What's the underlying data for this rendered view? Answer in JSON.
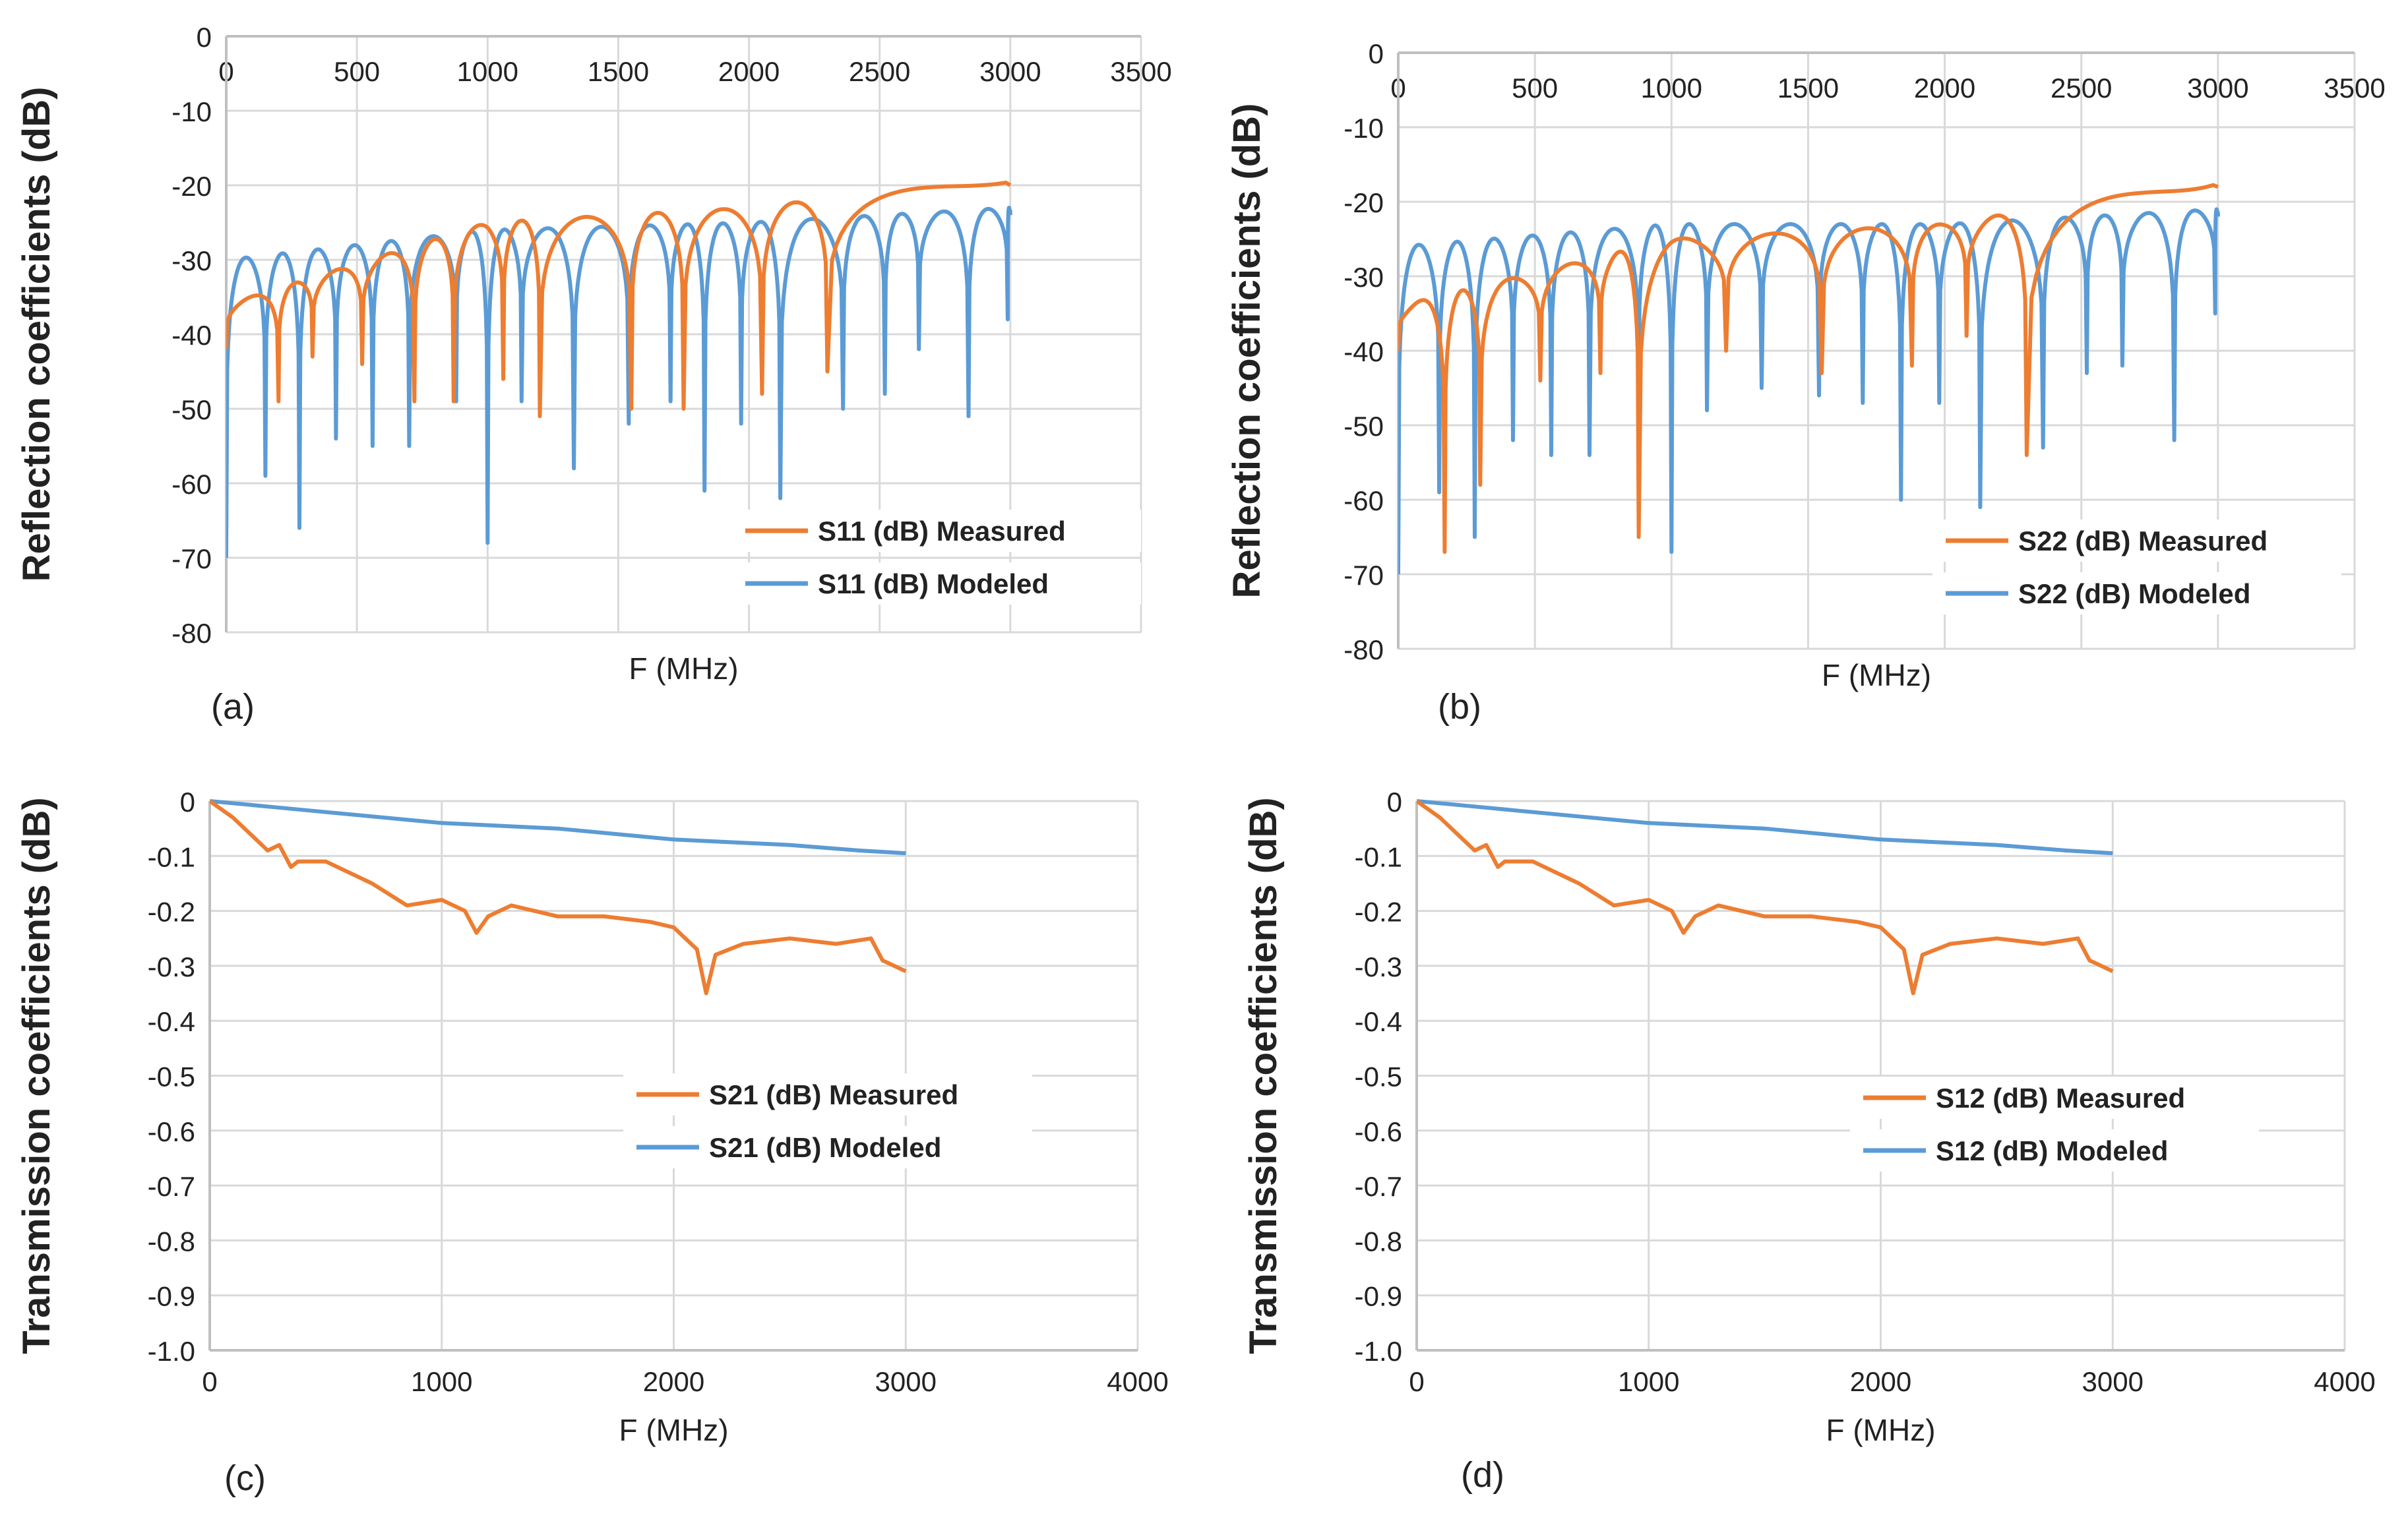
{
  "colors": {
    "measured": "#ED7D31",
    "modeled": "#5B9BD5",
    "grid": "#D9D9D9",
    "axis": "#BFBFBF"
  },
  "chart_data": [
    {
      "id": "a",
      "panel_label": "(a)",
      "type": "line",
      "xlabel": "F (MHz)",
      "ylabel": "Reflection coefficients (dB)",
      "xlim": [
        0,
        3500
      ],
      "ylim": [
        -80,
        0
      ],
      "xticks": [
        "0",
        "500",
        "1000",
        "1500",
        "2000",
        "2500",
        "3000",
        "3500"
      ],
      "yticks": [
        "0",
        "-10",
        "-20",
        "-30",
        "-40",
        "-50",
        "-60",
        "-70",
        "-80"
      ],
      "x_axis_position": "top",
      "legend": "bottom-right",
      "series": [
        {
          "name": "S11 (dB) Measured",
          "kind": "measured",
          "peak_envelope": [
            [
              0,
              -36
            ],
            [
              1000,
              -25
            ],
            [
              2000,
              -23
            ],
            [
              3000,
              -19
            ]
          ],
          "dips": [
            [
              200,
              -49
            ],
            [
              330,
              -43
            ],
            [
              520,
              -44
            ],
            [
              720,
              -49
            ],
            [
              870,
              -49
            ],
            [
              1060,
              -46
            ],
            [
              1200,
              -51
            ],
            [
              1550,
              -50
            ],
            [
              1750,
              -50
            ],
            [
              2050,
              -48
            ],
            [
              2300,
              -45
            ]
          ]
        },
        {
          "name": "S11 (dB) Modeled",
          "kind": "modeled",
          "peak_envelope": [
            [
              0,
              -30
            ],
            [
              1000,
              -26
            ],
            [
              2000,
              -25
            ],
            [
              3000,
              -23
            ]
          ],
          "dips": [
            [
              0,
              -70
            ],
            [
              150,
              -59
            ],
            [
              280,
              -66
            ],
            [
              420,
              -54
            ],
            [
              560,
              -55
            ],
            [
              700,
              -55
            ],
            [
              880,
              -49
            ],
            [
              1000,
              -68
            ],
            [
              1130,
              -49
            ],
            [
              1330,
              -58
            ],
            [
              1540,
              -52
            ],
            [
              1700,
              -49
            ],
            [
              1830,
              -61
            ],
            [
              1970,
              -52
            ],
            [
              2120,
              -62
            ],
            [
              2360,
              -50
            ],
            [
              2520,
              -48
            ],
            [
              2650,
              -42
            ],
            [
              2840,
              -51
            ],
            [
              2990,
              -38
            ]
          ]
        }
      ]
    },
    {
      "id": "b",
      "panel_label": "(b)",
      "type": "line",
      "xlabel": "F (MHz)",
      "ylabel": "Reflection coefficients (dB)",
      "xlim": [
        0,
        3500
      ],
      "ylim": [
        -80,
        0
      ],
      "xticks": [
        "0",
        "500",
        "1000",
        "1500",
        "2000",
        "2500",
        "3000",
        "3500"
      ],
      "yticks": [
        "0",
        "-10",
        "-20",
        "-30",
        "-40",
        "-50",
        "-60",
        "-70",
        "-80"
      ],
      "x_axis_position": "top",
      "legend": "bottom-right",
      "series": [
        {
          "name": "S22 (dB) Measured",
          "kind": "measured",
          "peak_envelope": [
            [
              0,
              -34
            ],
            [
              1000,
              -25
            ],
            [
              2000,
              -23
            ],
            [
              3000,
              -17
            ]
          ],
          "dips": [
            [
              170,
              -67
            ],
            [
              300,
              -58
            ],
            [
              520,
              -44
            ],
            [
              740,
              -43
            ],
            [
              880,
              -65
            ],
            [
              1200,
              -40
            ],
            [
              1550,
              -43
            ],
            [
              1880,
              -42
            ],
            [
              2080,
              -38
            ],
            [
              2300,
              -54
            ]
          ]
        },
        {
          "name": "S22 (dB) Modeled",
          "kind": "modeled",
          "peak_envelope": [
            [
              0,
              -26
            ],
            [
              1000,
              -23
            ],
            [
              2000,
              -23
            ],
            [
              3000,
              -21
            ]
          ],
          "dips": [
            [
              0,
              -70
            ],
            [
              150,
              -59
            ],
            [
              280,
              -65
            ],
            [
              420,
              -52
            ],
            [
              560,
              -54
            ],
            [
              700,
              -54
            ],
            [
              880,
              -52
            ],
            [
              1000,
              -67
            ],
            [
              1130,
              -48
            ],
            [
              1330,
              -45
            ],
            [
              1540,
              -46
            ],
            [
              1700,
              -47
            ],
            [
              1840,
              -60
            ],
            [
              1980,
              -47
            ],
            [
              2130,
              -61
            ],
            [
              2360,
              -53
            ],
            [
              2520,
              -43
            ],
            [
              2650,
              -42
            ],
            [
              2840,
              -52
            ],
            [
              2990,
              -35
            ]
          ]
        }
      ]
    },
    {
      "id": "c",
      "panel_label": "(c)",
      "type": "line",
      "xlabel": "F (MHz)",
      "ylabel": "Transmission coefficients (dB)",
      "xlim": [
        0,
        4000
      ],
      "ylim": [
        -1.0,
        0
      ],
      "xticks": [
        "0",
        "1000",
        "2000",
        "3000",
        "4000"
      ],
      "yticks": [
        "0",
        "-0.1",
        "-0.2",
        "-0.3",
        "-0.4",
        "-0.5",
        "-0.6",
        "-0.7",
        "-0.8",
        "-0.9",
        "-1.0"
      ],
      "x_axis_position": "bottom",
      "legend": "center-right",
      "series": [
        {
          "name": "S21 (dB) Measured",
          "kind": "measured",
          "points": [
            [
              0,
              0
            ],
            [
              100,
              -0.03
            ],
            [
              200,
              -0.07
            ],
            [
              250,
              -0.09
            ],
            [
              300,
              -0.08
            ],
            [
              350,
              -0.12
            ],
            [
              380,
              -0.11
            ],
            [
              500,
              -0.11
            ],
            [
              700,
              -0.15
            ],
            [
              850,
              -0.19
            ],
            [
              1000,
              -0.18
            ],
            [
              1100,
              -0.2
            ],
            [
              1150,
              -0.24
            ],
            [
              1200,
              -0.21
            ],
            [
              1300,
              -0.19
            ],
            [
              1500,
              -0.21
            ],
            [
              1700,
              -0.21
            ],
            [
              1900,
              -0.22
            ],
            [
              2000,
              -0.23
            ],
            [
              2100,
              -0.27
            ],
            [
              2140,
              -0.35
            ],
            [
              2180,
              -0.28
            ],
            [
              2300,
              -0.26
            ],
            [
              2500,
              -0.25
            ],
            [
              2700,
              -0.26
            ],
            [
              2850,
              -0.25
            ],
            [
              2900,
              -0.29
            ],
            [
              3000,
              -0.31
            ]
          ]
        },
        {
          "name": "S21 (dB) Modeled",
          "kind": "modeled",
          "points": [
            [
              0,
              0
            ],
            [
              250,
              -0.01
            ],
            [
              500,
              -0.02
            ],
            [
              1000,
              -0.04
            ],
            [
              1500,
              -0.05
            ],
            [
              2000,
              -0.07
            ],
            [
              2500,
              -0.08
            ],
            [
              2800,
              -0.09
            ],
            [
              3000,
              -0.095
            ]
          ]
        }
      ]
    },
    {
      "id": "d",
      "panel_label": "(d)",
      "type": "line",
      "xlabel": "F (MHz)",
      "ylabel": "Transmission coefficients (dB)",
      "xlim": [
        0,
        4000
      ],
      "ylim": [
        -1.0,
        0
      ],
      "xticks": [
        "0",
        "1000",
        "2000",
        "3000",
        "4000"
      ],
      "yticks": [
        "0",
        "-0.1",
        "-0.2",
        "-0.3",
        "-0.4",
        "-0.5",
        "-0.6",
        "-0.7",
        "-0.8",
        "-0.9",
        "-1.0"
      ],
      "x_axis_position": "bottom",
      "legend": "center-right",
      "series": [
        {
          "name": "S12 (dB) Measured",
          "kind": "measured",
          "points": [
            [
              0,
              0
            ],
            [
              100,
              -0.03
            ],
            [
              200,
              -0.07
            ],
            [
              250,
              -0.09
            ],
            [
              300,
              -0.08
            ],
            [
              350,
              -0.12
            ],
            [
              380,
              -0.11
            ],
            [
              500,
              -0.11
            ],
            [
              700,
              -0.15
            ],
            [
              850,
              -0.19
            ],
            [
              1000,
              -0.18
            ],
            [
              1100,
              -0.2
            ],
            [
              1150,
              -0.24
            ],
            [
              1200,
              -0.21
            ],
            [
              1300,
              -0.19
            ],
            [
              1500,
              -0.21
            ],
            [
              1700,
              -0.21
            ],
            [
              1900,
              -0.22
            ],
            [
              2000,
              -0.23
            ],
            [
              2100,
              -0.27
            ],
            [
              2140,
              -0.35
            ],
            [
              2180,
              -0.28
            ],
            [
              2300,
              -0.26
            ],
            [
              2500,
              -0.25
            ],
            [
              2700,
              -0.26
            ],
            [
              2850,
              -0.25
            ],
            [
              2900,
              -0.29
            ],
            [
              3000,
              -0.31
            ]
          ]
        },
        {
          "name": "S12 (dB) Modeled",
          "kind": "modeled",
          "points": [
            [
              0,
              0
            ],
            [
              250,
              -0.01
            ],
            [
              500,
              -0.02
            ],
            [
              1000,
              -0.04
            ],
            [
              1500,
              -0.05
            ],
            [
              2000,
              -0.07
            ],
            [
              2500,
              -0.08
            ],
            [
              2800,
              -0.09
            ],
            [
              3000,
              -0.095
            ]
          ]
        }
      ]
    }
  ]
}
